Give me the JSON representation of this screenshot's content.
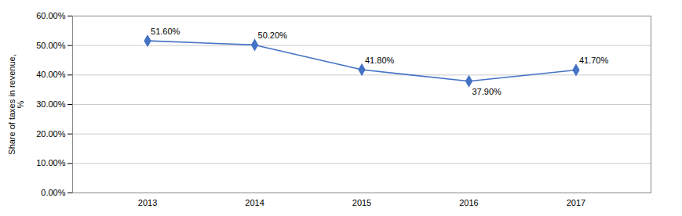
{
  "chart_data": {
    "type": "line",
    "x": [
      2013,
      2014,
      2015,
      2016,
      2017
    ],
    "values": [
      51.6,
      50.2,
      41.8,
      37.9,
      41.7
    ],
    "value_labels": [
      "51.60%",
      "50.20%",
      "41.80%",
      "37.90%",
      "41.70%"
    ],
    "data_labels": true,
    "ylabel": "Share of taxes in revenue,\n%",
    "xlim": [
      2012.3,
      2017.7
    ],
    "xticks": [
      2013,
      2014,
      2015,
      2016,
      2017
    ],
    "ylim": [
      0,
      60
    ],
    "yticks": [
      {
        "value": 0,
        "label": "0.00%"
      },
      {
        "value": 10,
        "label": "10.00%"
      },
      {
        "value": 20,
        "label": "20.00%"
      },
      {
        "value": 30,
        "label": "30.00%"
      },
      {
        "value": 40,
        "label": "40.00%"
      },
      {
        "value": 50,
        "label": "50.00%"
      },
      {
        "value": 60,
        "label": "60.00%"
      }
    ],
    "color": "#4472C4",
    "marker": "diamond",
    "grid": true
  }
}
